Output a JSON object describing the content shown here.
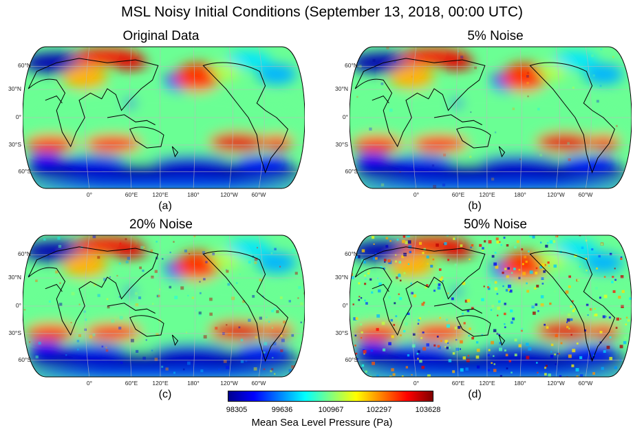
{
  "title": "MSL Noisy Initial Conditions (September 13, 2018, 00:00 UTC)",
  "chart_data": [
    {
      "type": "heatmap",
      "title": "Original Data",
      "panel": "(a)",
      "noise_percent": 0
    },
    {
      "type": "heatmap",
      "title": "5% Noise",
      "panel": "(b)",
      "noise_percent": 5
    },
    {
      "type": "heatmap",
      "title": "20% Noise",
      "panel": "(c)",
      "noise_percent": 20
    },
    {
      "type": "heatmap",
      "title": "50% Noise",
      "panel": "(d)",
      "noise_percent": 50
    }
  ],
  "axes": {
    "lat_labels": [
      "60°N",
      "30°N",
      "0°",
      "30°S",
      "60°S"
    ],
    "lon_labels": [
      "0°",
      "60°E",
      "120°E",
      "180°",
      "120°W",
      "60°W"
    ]
  },
  "colorbar": {
    "label": "Mean Sea Level Pressure (Pa)",
    "ticks": [
      "98305",
      "99636",
      "100967",
      "102297",
      "103628"
    ],
    "range": [
      97640,
      104293
    ],
    "colormap": "jet"
  }
}
